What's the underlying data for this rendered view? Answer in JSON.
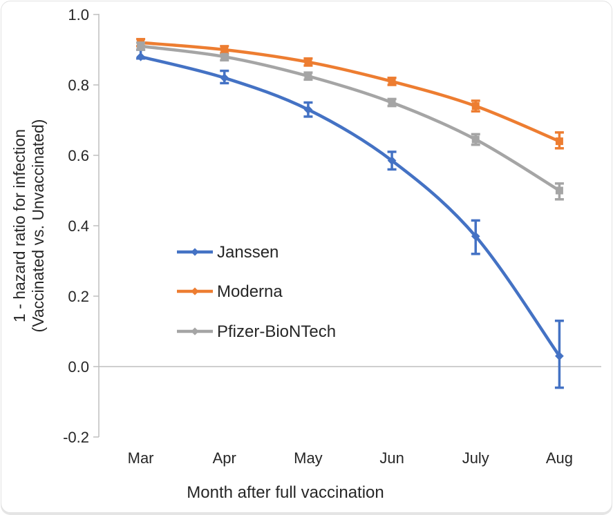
{
  "figure": {
    "y_axis_title_line1": "1 - hazard ratio for infection",
    "y_axis_title_line2": "(Vaccinated vs. Unvaccinated)",
    "x_axis_title": "Month after full vaccination"
  },
  "colors": {
    "janssen": "#4472C4",
    "moderna": "#ED7D31",
    "pfizer": "#A5A5A5",
    "axis_line": "#BFBFBF",
    "zero_line": "#BFBFBF",
    "text": "#262626",
    "card_border": "#E2E2E2"
  },
  "chart_data": {
    "type": "line",
    "title": "",
    "xlabel": "Month after full vaccination",
    "ylabel": "1 - hazard ratio for infection (Vaccinated vs. Unvaccinated)",
    "categories": [
      "Mar",
      "Apr",
      "May",
      "Jun",
      "July",
      "Aug"
    ],
    "ylim": [
      -0.2,
      1.0
    ],
    "y_ticks": [
      1.0,
      0.8,
      0.6,
      0.4,
      0.2,
      0.0,
      -0.2
    ],
    "grid": "zero-line-only",
    "legend_position": "inside-center-left",
    "series": [
      {
        "name": "Janssen",
        "color": "#4472C4",
        "marker": "diamond",
        "values": [
          0.88,
          0.82,
          0.73,
          0.585,
          0.37,
          0.03
        ],
        "ci_low": [
          0.875,
          0.805,
          0.71,
          0.56,
          0.32,
          -0.06
        ],
        "ci_high": [
          0.9,
          0.84,
          0.75,
          0.61,
          0.415,
          0.13
        ]
      },
      {
        "name": "Moderna",
        "color": "#ED7D31",
        "marker": "square",
        "values": [
          0.92,
          0.9,
          0.865,
          0.81,
          0.74,
          0.64
        ],
        "ci_low": [
          0.91,
          0.89,
          0.855,
          0.8,
          0.725,
          0.62
        ],
        "ci_high": [
          0.93,
          0.91,
          0.875,
          0.82,
          0.755,
          0.665
        ]
      },
      {
        "name": "Pfizer-BioNTech",
        "color": "#A5A5A5",
        "marker": "square",
        "values": [
          0.91,
          0.88,
          0.825,
          0.75,
          0.645,
          0.5
        ],
        "ci_low": [
          0.9,
          0.87,
          0.815,
          0.74,
          0.63,
          0.475
        ],
        "ci_high": [
          0.92,
          0.885,
          0.835,
          0.76,
          0.66,
          0.52
        ]
      }
    ]
  }
}
